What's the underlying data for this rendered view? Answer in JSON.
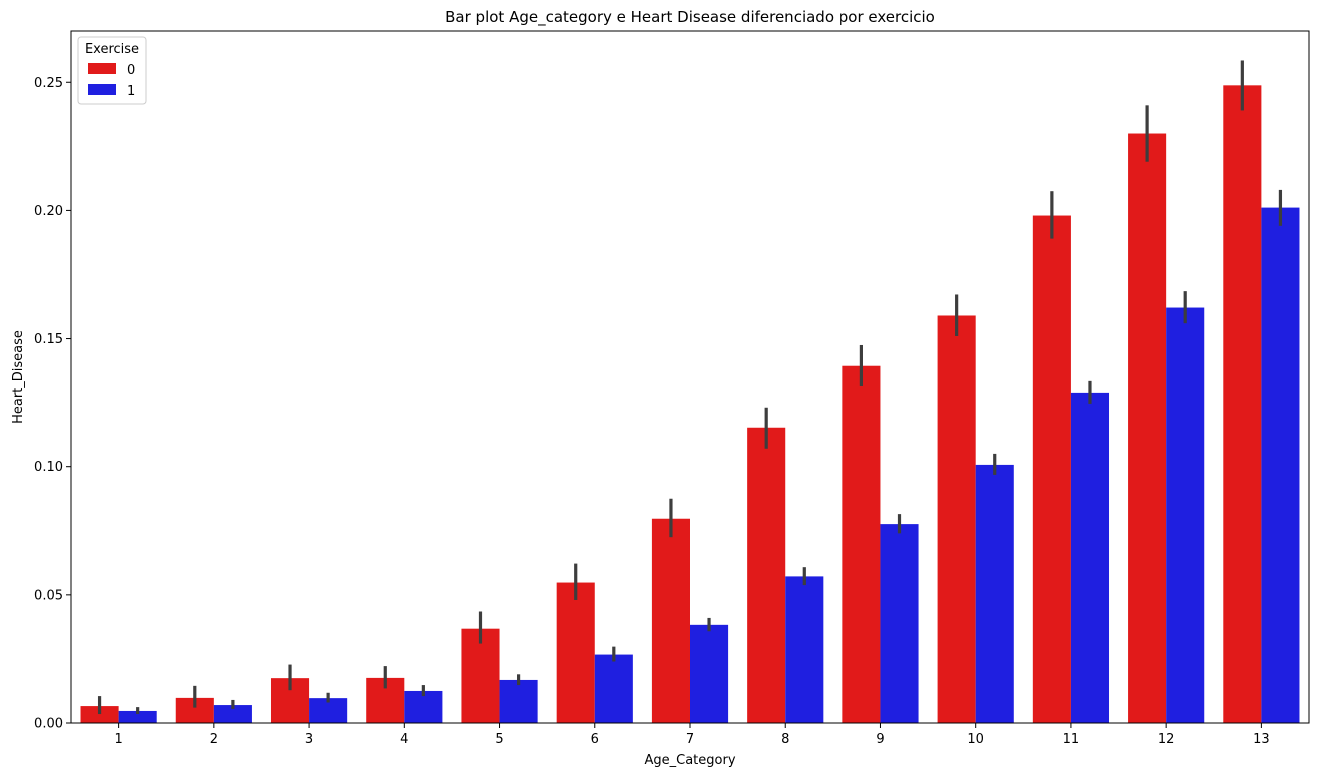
{
  "chart_data": {
    "type": "bar",
    "title": "Bar plot Age_category e Heart Disease diferenciado por exercicio",
    "xlabel": "Age_Category",
    "ylabel": "Heart_Disease",
    "categories": [
      "1",
      "2",
      "3",
      "4",
      "5",
      "6",
      "7",
      "8",
      "9",
      "10",
      "11",
      "12",
      "13"
    ],
    "ylim": [
      0,
      0.27
    ],
    "yticks": [
      "0.00",
      "0.05",
      "0.10",
      "0.15",
      "0.20",
      "0.25"
    ],
    "grid": false,
    "legend": {
      "title": "Exercise",
      "placement": "top-left"
    },
    "series": [
      {
        "name": "0",
        "color": "#e11a1a",
        "values": [
          0.0066,
          0.0098,
          0.0175,
          0.0176,
          0.0368,
          0.0548,
          0.0797,
          0.1152,
          0.1394,
          0.159,
          0.198,
          0.23,
          0.2488
        ],
        "err_low": [
          0.0035,
          0.006,
          0.0128,
          0.0135,
          0.031,
          0.048,
          0.0725,
          0.107,
          0.1315,
          0.151,
          0.189,
          0.219,
          0.239
        ],
        "err_high": [
          0.0105,
          0.0145,
          0.0228,
          0.0222,
          0.0435,
          0.0622,
          0.0875,
          0.123,
          0.1475,
          0.1672,
          0.2075,
          0.241,
          0.2585
        ]
      },
      {
        "name": "1",
        "color": "#1f1fe0",
        "values": [
          0.0047,
          0.007,
          0.0097,
          0.0125,
          0.0168,
          0.0267,
          0.0383,
          0.0572,
          0.0776,
          0.1007,
          0.1288,
          0.1621,
          0.2011
        ],
        "err_low": [
          0.0035,
          0.0055,
          0.008,
          0.0105,
          0.0148,
          0.024,
          0.0358,
          0.0538,
          0.074,
          0.0968,
          0.1245,
          0.156,
          0.194
        ],
        "err_high": [
          0.0062,
          0.009,
          0.0118,
          0.0148,
          0.019,
          0.0298,
          0.041,
          0.0608,
          0.0815,
          0.105,
          0.1335,
          0.1685,
          0.208
        ]
      }
    ]
  }
}
